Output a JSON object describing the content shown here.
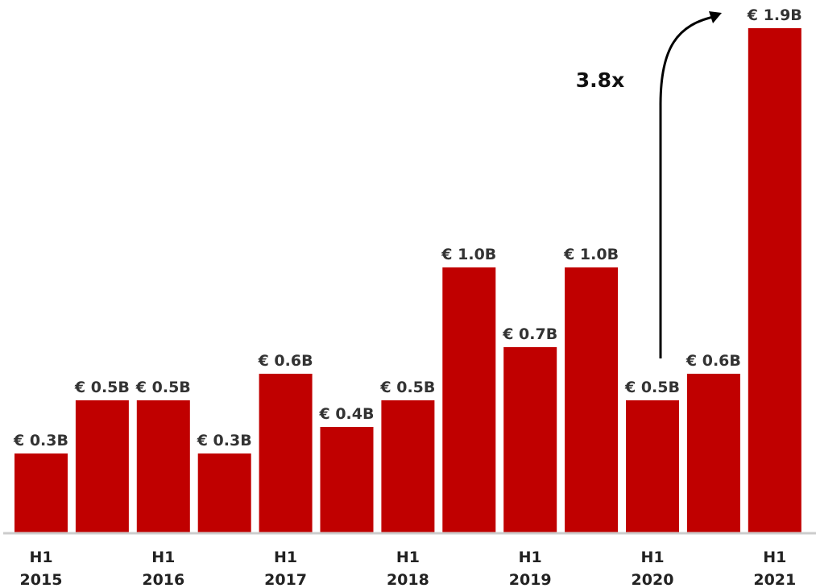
{
  "chart_data": {
    "type": "bar",
    "title": "",
    "xlabel": "",
    "ylabel": "",
    "unit": "€ B",
    "ylim": [
      0,
      2.0
    ],
    "categories": [
      "2015a",
      "2015b",
      "2016a",
      "2016b",
      "2017a",
      "2017b",
      "2018a",
      "2018b",
      "2019a",
      "2019b",
      "2020a",
      "2020b",
      "2021a"
    ],
    "values": [
      0.3,
      0.5,
      0.5,
      0.3,
      0.6,
      0.4,
      0.5,
      1.0,
      0.7,
      1.0,
      0.5,
      0.6,
      1.9
    ],
    "value_labels": [
      "€ 0.3B",
      "€ 0.5B",
      "€ 0.5B",
      "€ 0.3B",
      "€ 0.6B",
      "€ 0.4B",
      "€ 0.5B",
      "€ 1.0B",
      "€ 0.7B",
      "€ 1.0B",
      "€ 0.5B",
      "€ 0.6B",
      "€ 1.9B"
    ],
    "x_tick_labels": [
      {
        "line1": "H1",
        "line2": "2015"
      },
      {
        "line1": "H1",
        "line2": "2016"
      },
      {
        "line1": "H1",
        "line2": "2017"
      },
      {
        "line1": "H1",
        "line2": "2018"
      },
      {
        "line1": "H1",
        "line2": "2019"
      },
      {
        "line1": "H1",
        "line2": "2020"
      },
      {
        "line1": "H1",
        "line2": "2021"
      }
    ],
    "annotation": {
      "text": "3.8x",
      "from_index": 10,
      "to_index": 12
    },
    "colors": {
      "bar": "#c00000",
      "axis": "#cccccc",
      "arrow": "#000000"
    },
    "grid": false,
    "legend": "none"
  }
}
